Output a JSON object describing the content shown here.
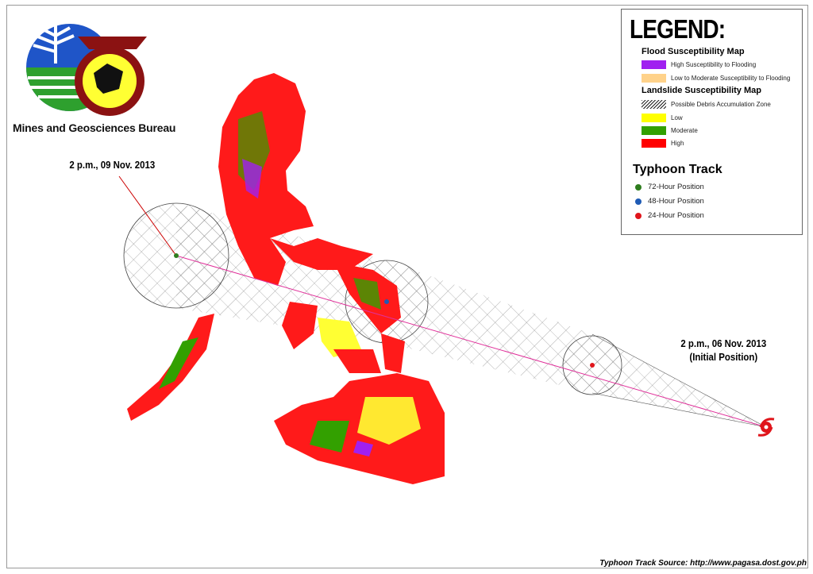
{
  "organization": "Mines and Geosciences Bureau",
  "legend": {
    "title": "LEGEND:",
    "flood_title": "Flood Susceptibility Map",
    "flood_items": [
      {
        "label": "High Susceptibility to Flooding",
        "color": "#a020f0"
      },
      {
        "label": "Low to Moderate Susceptibility to Flooding",
        "color": "#ffd28a"
      }
    ],
    "landslide_title": "Landslide Susceptibility Map",
    "landslide_items": [
      {
        "label": "Possible Debris Accumulation Zone",
        "pattern": "hatch"
      },
      {
        "label": "Low",
        "color": "#ffff00"
      },
      {
        "label": "Moderate",
        "color": "#33a000"
      },
      {
        "label": "High",
        "color": "#ff0000"
      }
    ],
    "typhoon_title": "Typhoon Track",
    "positions": [
      {
        "label": "72-Hour Position",
        "color": "#2e7d1e"
      },
      {
        "label": "48-Hour Position",
        "color": "#1f5bb5"
      },
      {
        "label": "24-Hour Position",
        "color": "#e0151b"
      }
    ]
  },
  "track": {
    "forecast_label": "2 p.m., 09 Nov. 2013",
    "initial_label_line1": "2 p.m., 06 Nov. 2013",
    "initial_label_line2": "(Initial Position)",
    "line_color": "#e0309a"
  },
  "source": "Typhoon Track Source: http://www.pagasa.dost.gov.ph"
}
